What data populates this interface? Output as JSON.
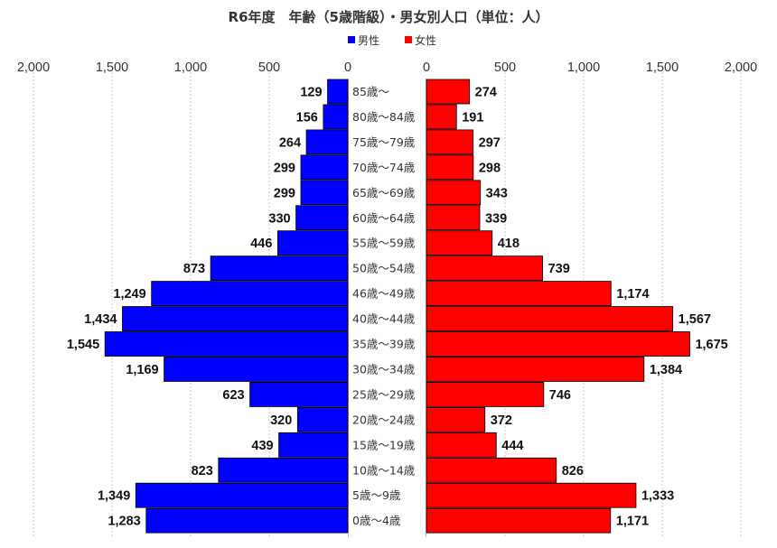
{
  "chart_data": {
    "type": "bar",
    "title": "R6年度　年齢（5歳階級）・男女別人口（単位：人）",
    "categories": [
      "85歳～",
      "80歳～84歳",
      "75歳～79歳",
      "70歳～74歳",
      "65歳～69歳",
      "60歳～64歳",
      "55歳～59歳",
      "50歳～54歳",
      "46歳～49歳",
      "40歳～44歳",
      "35歳～39歳",
      "30歳～34歳",
      "25歳～29歳",
      "20歳～24歳",
      "15歳～19歳",
      "10歳～14歳",
      "5歳～9歳",
      "0歳～4歳"
    ],
    "series": [
      {
        "name": "男性",
        "color": "#0000ff",
        "values": [
          129,
          156,
          264,
          299,
          299,
          330,
          446,
          873,
          1249,
          1434,
          1545,
          1169,
          623,
          320,
          439,
          823,
          1349,
          1283
        ],
        "labels": [
          "129",
          "156",
          "264",
          "299",
          "299",
          "330",
          "446",
          "873",
          "1,249",
          "1,434",
          "1,545",
          "1,169",
          "623",
          "320",
          "439",
          "823",
          "1,349",
          "1,283"
        ]
      },
      {
        "name": "女性",
        "color": "#ff0000",
        "values": [
          274,
          191,
          297,
          298,
          343,
          339,
          418,
          739,
          1174,
          1567,
          1675,
          1384,
          746,
          372,
          444,
          826,
          1333,
          1171
        ],
        "labels": [
          "274",
          "191",
          "297",
          "298",
          "343",
          "339",
          "418",
          "739",
          "1,174",
          "1,567",
          "1,675",
          "1,384",
          "746",
          "372",
          "444",
          "826",
          "1,333",
          "1,171"
        ]
      }
    ],
    "axes": {
      "male": {
        "range": [
          0,
          2000
        ],
        "direction": "reversed",
        "ticks": [
          "2,000",
          "1,500",
          "1,000",
          "500",
          "0"
        ]
      },
      "female": {
        "range": [
          0,
          2000
        ],
        "direction": "normal",
        "ticks": [
          "0",
          "500",
          "1,000",
          "1,500",
          "2,000"
        ]
      }
    },
    "gridlines": "vertical dashed",
    "legend_position": "top-center"
  }
}
